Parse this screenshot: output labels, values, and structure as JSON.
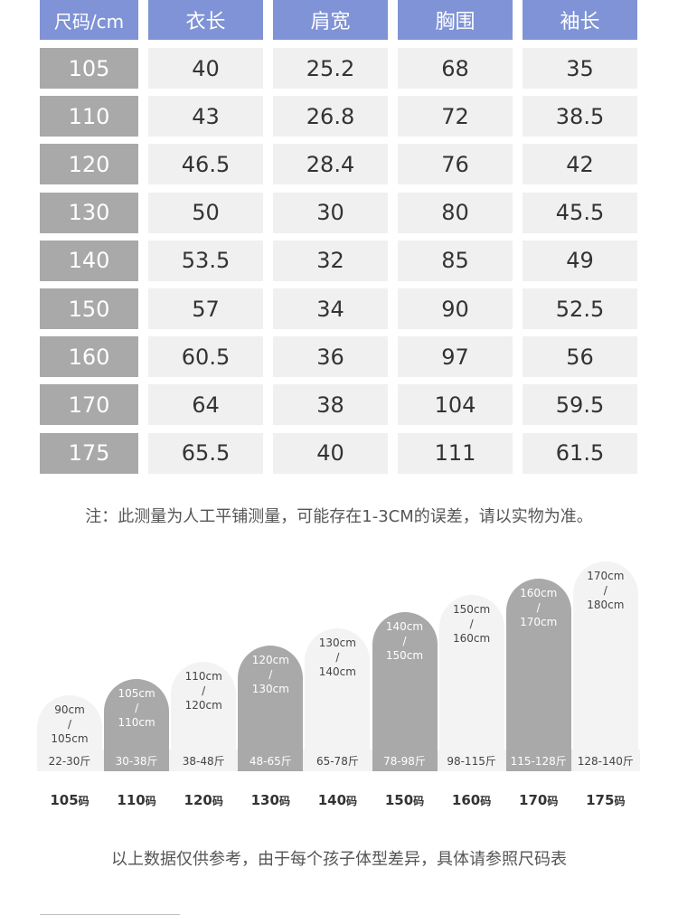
{
  "table": {
    "headers": [
      "尺码/cm",
      "衣长",
      "肩宽",
      "胸围",
      "袖长"
    ],
    "rows": [
      [
        "105",
        "40",
        "25.2",
        "68",
        "35"
      ],
      [
        "110",
        "43",
        "26.8",
        "72",
        "38.5"
      ],
      [
        "120",
        "46.5",
        "28.4",
        "76",
        "42"
      ],
      [
        "130",
        "50",
        "30",
        "80",
        "45.5"
      ],
      [
        "140",
        "53.5",
        "32",
        "85",
        "49"
      ],
      [
        "150",
        "57",
        "34",
        "90",
        "52.5"
      ],
      [
        "160",
        "60.5",
        "36",
        "97",
        "56"
      ],
      [
        "170",
        "64",
        "38",
        "104",
        "59.5"
      ],
      [
        "175",
        "65.5",
        "40",
        "111",
        "61.5"
      ]
    ]
  },
  "note_measure": "注：此测量为人工平铺测量，可能存在1-3CM的误差，请以实物为准。",
  "size_guide": [
    {
      "size": "105",
      "unit": "码",
      "height_range": [
        "90cm",
        "/",
        "105cm"
      ],
      "weight": "22-30斤",
      "shade": "light",
      "level": 1
    },
    {
      "size": "110",
      "unit": "码",
      "height_range": [
        "105cm",
        "/",
        "110cm"
      ],
      "weight": "30-38斤",
      "shade": "dark",
      "level": 2
    },
    {
      "size": "120",
      "unit": "码",
      "height_range": [
        "110cm",
        "/",
        "120cm"
      ],
      "weight": "38-48斤",
      "shade": "light",
      "level": 3
    },
    {
      "size": "130",
      "unit": "码",
      "height_range": [
        "120cm",
        "/",
        "130cm"
      ],
      "weight": "48-65斤",
      "shade": "dark",
      "level": 4
    },
    {
      "size": "140",
      "unit": "码",
      "height_range": [
        "130cm",
        "/",
        "140cm"
      ],
      "weight": "65-78斤",
      "shade": "light",
      "level": 5
    },
    {
      "size": "150",
      "unit": "码",
      "height_range": [
        "140cm",
        "/",
        "150cm"
      ],
      "weight": "78-98斤",
      "shade": "dark",
      "level": 6
    },
    {
      "size": "160",
      "unit": "码",
      "height_range": [
        "150cm",
        "/",
        "160cm"
      ],
      "weight": "98-115斤",
      "shade": "light",
      "level": 7
    },
    {
      "size": "170",
      "unit": "码",
      "height_range": [
        "160cm",
        "/",
        "170cm"
      ],
      "weight": "115-128斤",
      "shade": "dark",
      "level": 8
    },
    {
      "size": "175",
      "unit": "码",
      "height_range": [
        "170cm",
        "/",
        "180cm"
      ],
      "weight": "128-140斤",
      "shade": "light",
      "level": 9
    }
  ],
  "note_reference": "以上数据仅供参考，由于每个孩子体型差异，具体请参照尺码表",
  "colors": {
    "header": "#7f93d6",
    "size_cell": "#a9a9a9",
    "cell": "#f0f0f0",
    "capsule_dark": "#a9a9a9",
    "capsule_light": "#f3f3f3"
  }
}
